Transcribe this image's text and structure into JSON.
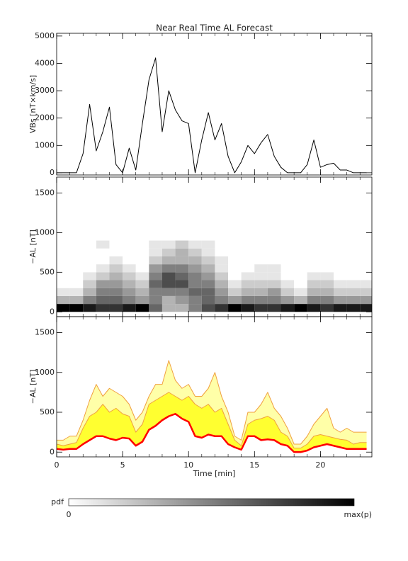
{
  "chart_data": [
    {
      "type": "line",
      "title": "Near Real Time AL Forecast",
      "ylabel": "VBs [nT×km/s]",
      "x": [
        0,
        0.5,
        1,
        1.5,
        2,
        2.5,
        3,
        3.5,
        4,
        4.5,
        5,
        5.5,
        6,
        6.5,
        7,
        7.5,
        8,
        8.5,
        9,
        9.5,
        10,
        10.5,
        11,
        11.5,
        12,
        12.5,
        13,
        13.5,
        14,
        14.5,
        15,
        15.5,
        16,
        16.5,
        17,
        17.5,
        18,
        18.5,
        19,
        19.5,
        20,
        20.5,
        21,
        21.5,
        22,
        22.5,
        23,
        23.5
      ],
      "series": [
        {
          "color": "#000000",
          "values": [
            0,
            0,
            0,
            0,
            700,
            2500,
            800,
            1500,
            2400,
            300,
            0,
            900,
            100,
            1800,
            3400,
            4200,
            1500,
            3000,
            2300,
            1900,
            1800,
            0,
            1200,
            2200,
            1200,
            1800,
            600,
            0,
            400,
            1000,
            700,
            1100,
            1400,
            600,
            200,
            0,
            0,
            0,
            300,
            1200,
            200,
            300,
            350,
            100,
            100,
            0,
            0,
            0
          ]
        }
      ],
      "xlim": [
        0,
        23.9
      ],
      "xticks": [
        0,
        5,
        10,
        15,
        20
      ],
      "show_xtick_labels": false,
      "ylim": [
        -80,
        5100
      ],
      "yticks": [
        0,
        1000,
        2000,
        3000,
        4000,
        5000
      ]
    },
    {
      "type": "heatmap",
      "ylabel": "−AL [nT]",
      "x_bins": [
        0,
        1,
        2,
        3,
        4,
        5,
        6,
        7,
        8,
        9,
        10,
        11,
        12,
        13,
        14,
        15,
        16,
        17,
        18,
        19,
        20,
        21,
        22,
        23,
        24
      ],
      "y_bins": [
        0,
        100,
        200,
        300,
        400,
        500,
        600,
        700,
        800,
        900
      ],
      "values": [
        [
          1,
          0.3,
          0.1,
          0,
          0,
          0,
          0,
          0,
          0
        ],
        [
          1,
          0.3,
          0.1,
          0,
          0,
          0,
          0,
          0,
          0
        ],
        [
          0.9,
          0.5,
          0.3,
          0.2,
          0.1,
          0,
          0,
          0,
          0
        ],
        [
          0.8,
          0.6,
          0.5,
          0.4,
          0.2,
          0.1,
          0,
          0,
          0.1
        ],
        [
          0.8,
          0.6,
          0.5,
          0.4,
          0.3,
          0.2,
          0.1,
          0,
          0
        ],
        [
          0.9,
          0.5,
          0.4,
          0.3,
          0.2,
          0.1,
          0,
          0,
          0
        ],
        [
          1,
          0.4,
          0.3,
          0.2,
          0.1,
          0,
          0,
          0,
          0
        ],
        [
          0.6,
          0.5,
          0.5,
          0.6,
          0.5,
          0.4,
          0.2,
          0.1,
          0.1
        ],
        [
          0.3,
          0.3,
          0.5,
          0.7,
          0.7,
          0.5,
          0.3,
          0.2,
          0.1
        ],
        [
          0.3,
          0.4,
          0.5,
          0.7,
          0.6,
          0.5,
          0.3,
          0.3,
          0.2
        ],
        [
          0.5,
          0.5,
          0.6,
          0.5,
          0.5,
          0.4,
          0.3,
          0.2,
          0.1
        ],
        [
          0.7,
          0.6,
          0.6,
          0.5,
          0.4,
          0.3,
          0.2,
          0.1,
          0.1
        ],
        [
          0.8,
          0.5,
          0.4,
          0.3,
          0.2,
          0.1,
          0.1,
          0,
          0
        ],
        [
          1,
          0.4,
          0.2,
          0.1,
          0,
          0,
          0,
          0,
          0
        ],
        [
          0.9,
          0.5,
          0.3,
          0.2,
          0.1,
          0,
          0,
          0,
          0
        ],
        [
          0.8,
          0.5,
          0.3,
          0.2,
          0.1,
          0.1,
          0,
          0,
          0
        ],
        [
          0.8,
          0.5,
          0.4,
          0.2,
          0.1,
          0.1,
          0,
          0,
          0
        ],
        [
          0.9,
          0.4,
          0.2,
          0.1,
          0,
          0,
          0,
          0,
          0
        ],
        [
          1,
          0.3,
          0.1,
          0,
          0,
          0,
          0,
          0,
          0
        ],
        [
          0.9,
          0.5,
          0.3,
          0.2,
          0.1,
          0,
          0,
          0,
          0
        ],
        [
          0.8,
          0.5,
          0.3,
          0.2,
          0.1,
          0,
          0,
          0,
          0
        ],
        [
          0.9,
          0.4,
          0.2,
          0.1,
          0,
          0,
          0,
          0,
          0
        ],
        [
          0.9,
          0.4,
          0.2,
          0.1,
          0,
          0,
          0,
          0,
          0
        ],
        [
          0.9,
          0.4,
          0.2,
          0.1,
          0,
          0,
          0,
          0,
          0
        ]
      ],
      "colorbar": {
        "label": "pdf",
        "min_label": "0",
        "max_label": "max(p)",
        "colors": [
          "#ffffff",
          "#000000"
        ]
      },
      "xlim": [
        0,
        23.9
      ],
      "xticks": [
        0,
        5,
        10,
        15,
        20
      ],
      "show_xtick_labels": false,
      "ylim": [
        -60,
        1700
      ],
      "yticks": [
        0,
        500,
        1000,
        1500
      ]
    },
    {
      "type": "line",
      "ylabel": "−AL [nT]",
      "xlabel": "Time [min]",
      "x": [
        0,
        0.5,
        1,
        1.5,
        2,
        2.5,
        3,
        3.5,
        4,
        4.5,
        5,
        5.5,
        6,
        6.5,
        7,
        7.5,
        8,
        8.5,
        9,
        9.5,
        10,
        10.5,
        11,
        11.5,
        12,
        12.5,
        13,
        13.5,
        14,
        14.5,
        15,
        15.5,
        16,
        16.5,
        17,
        17.5,
        18,
        18.5,
        19,
        19.5,
        20,
        20.5,
        21,
        21.5,
        22,
        22.5,
        23,
        23.5
      ],
      "series": [
        {
          "color": "#f0a040",
          "fill": "#ffffa8",
          "values": [
            150,
            150,
            200,
            200,
            400,
            650,
            850,
            700,
            800,
            750,
            700,
            600,
            400,
            500,
            700,
            850,
            850,
            1150,
            900,
            800,
            850,
            700,
            700,
            800,
            1000,
            700,
            500,
            200,
            150,
            500,
            500,
            600,
            750,
            550,
            450,
            300,
            100,
            100,
            200,
            350,
            450,
            550,
            300,
            250,
            300,
            250,
            250,
            250
          ]
        },
        {
          "color": "#f0a040",
          "fill": "#ffff30",
          "values": [
            100,
            80,
            100,
            120,
            300,
            450,
            500,
            600,
            500,
            550,
            480,
            450,
            250,
            350,
            600,
            650,
            700,
            750,
            700,
            650,
            700,
            600,
            550,
            600,
            500,
            550,
            350,
            150,
            80,
            350,
            400,
            420,
            450,
            400,
            250,
            200,
            50,
            50,
            100,
            200,
            220,
            200,
            180,
            160,
            150,
            100,
            120,
            120
          ]
        },
        {
          "color": "#ff0000",
          "width": 2.5,
          "values": [
            40,
            30,
            40,
            40,
            100,
            150,
            200,
            200,
            170,
            150,
            180,
            170,
            80,
            130,
            280,
            330,
            400,
            450,
            480,
            420,
            380,
            200,
            180,
            220,
            200,
            200,
            100,
            60,
            30,
            200,
            200,
            150,
            160,
            150,
            100,
            80,
            0,
            0,
            20,
            60,
            80,
            100,
            80,
            60,
            40,
            40,
            40,
            40
          ]
        }
      ],
      "xlim": [
        0,
        23.9
      ],
      "xticks": [
        0,
        5,
        10,
        15,
        20
      ],
      "show_xtick_labels": true,
      "ylim": [
        -60,
        1700
      ],
      "yticks": [
        0,
        500,
        1000,
        1500
      ]
    }
  ]
}
